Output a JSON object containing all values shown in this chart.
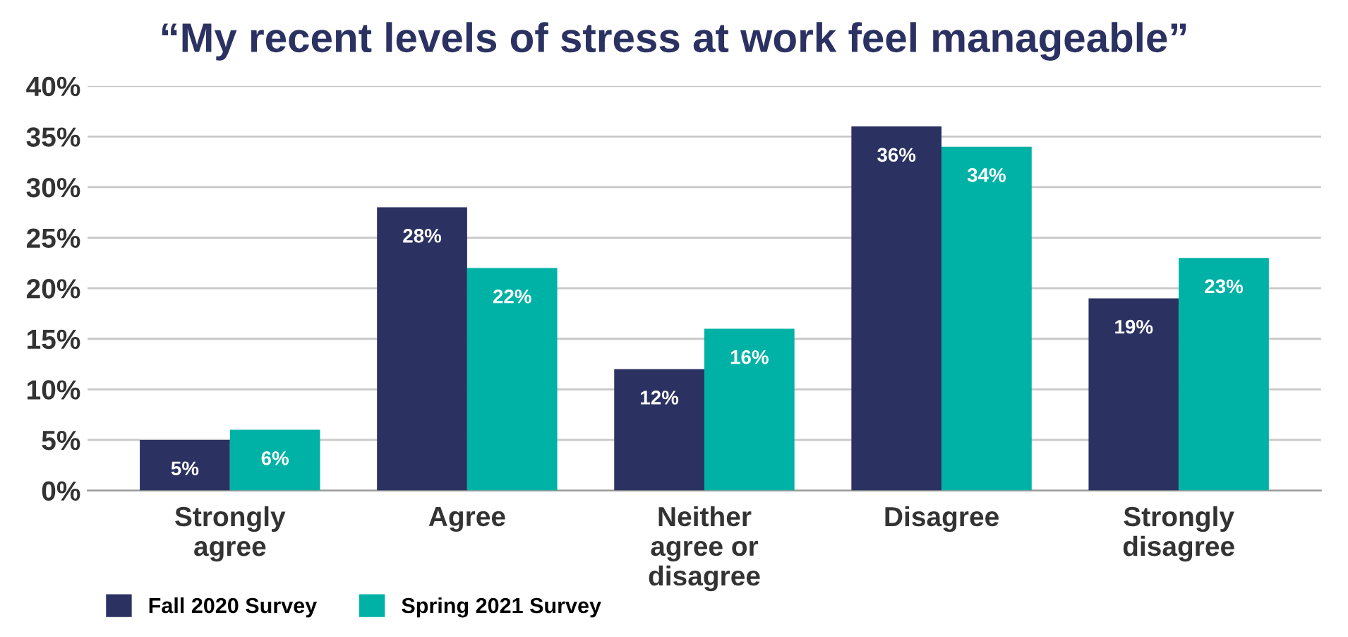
{
  "chart_data": {
    "type": "bar",
    "title": "“My recent levels of stress at work feel manageable”",
    "categories": [
      "Strongly\nagree",
      "Agree",
      "Neither\nagree or\ndisagree",
      "Disagree",
      "Strongly\ndisagree"
    ],
    "series": [
      {
        "name": "Fall 2020 Survey",
        "color": "#2b3262",
        "values": [
          5,
          28,
          12,
          36,
          19
        ],
        "value_labels": [
          "5%",
          "28%",
          "12%",
          "36%",
          "19%"
        ]
      },
      {
        "name": "Spring 2021 Survey",
        "color": "#00b2a6",
        "values": [
          6,
          22,
          16,
          34,
          23
        ],
        "value_labels": [
          "6%",
          "22%",
          "16%",
          "34%",
          "23%"
        ]
      }
    ],
    "ylim": [
      0,
      40
    ],
    "yticks": [
      {
        "value": 0,
        "label": "0%"
      },
      {
        "value": 5,
        "label": "5%"
      },
      {
        "value": 10,
        "label": "10%"
      },
      {
        "value": 15,
        "label": "15%"
      },
      {
        "value": 20,
        "label": "20%"
      },
      {
        "value": 25,
        "label": "25%"
      },
      {
        "value": 30,
        "label": "30%"
      },
      {
        "value": 35,
        "label": "35%"
      },
      {
        "value": 40,
        "label": "40%"
      }
    ],
    "grid": "y",
    "legend": "bottom left"
  }
}
